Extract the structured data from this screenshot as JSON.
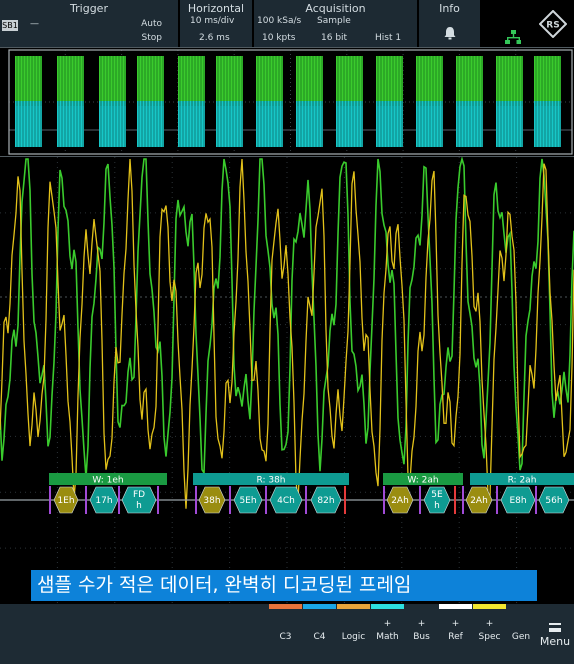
{
  "header": {
    "trigger": {
      "title": "Trigger",
      "source_badge": "SB1",
      "level": "—",
      "mode": "Auto",
      "state": "Stop"
    },
    "horizontal": {
      "title": "Horizontal",
      "time_scale": "10 ms/div",
      "position": "2.6 ms"
    },
    "acquisition": {
      "title": "Acquisition",
      "sample_rate": "100 kSa/s",
      "mode": "Sample",
      "record_length": "10 kpts",
      "resolution": "16 bit",
      "histogram": "Hist 1"
    },
    "info": {
      "title": "Info",
      "icon": "bell-icon"
    },
    "network_icon": "network-icon",
    "brand_icon": "rohde-schwarz-logo",
    "colors": {
      "header_bg": "#1d2a33",
      "network": "#34c759"
    }
  },
  "waveforms": {
    "colors": {
      "ch_green": "#3acb2d",
      "ch_yellow": "#e3c21a",
      "ch_cyan": "#17c7c7",
      "decode_green": "#1a9a42",
      "decode_teal": "#0e9b92",
      "decode_yellow": "#9a8d10",
      "error": "#e53b3b",
      "marker_purple": "#a14bd6"
    }
  },
  "decode": {
    "frames": [
      {
        "label": "W: 1eh",
        "type": "write"
      },
      {
        "label": "R: 38h",
        "type": "read"
      },
      {
        "label": "W: 2ah",
        "type": "write"
      },
      {
        "label": "R: 2ah",
        "type": "read"
      }
    ],
    "bytes": [
      {
        "label": "1Eh",
        "kind": "address"
      },
      {
        "label": "17h",
        "kind": "data"
      },
      {
        "label": "FD h",
        "kind": "data"
      },
      {
        "label": "38h",
        "kind": "address"
      },
      {
        "label": "5Eh",
        "kind": "data"
      },
      {
        "label": "4Ch",
        "kind": "data"
      },
      {
        "label": "82h",
        "kind": "data"
      },
      {
        "label": "2Ah",
        "kind": "address"
      },
      {
        "label": "5E h",
        "kind": "data"
      },
      {
        "label": "2Ah",
        "kind": "address"
      },
      {
        "label": "E8h",
        "kind": "data"
      },
      {
        "label": "56h",
        "kind": "data"
      }
    ]
  },
  "caption": "샘플 수가 적은 데이터, 완벽히 디코딩된 프레임",
  "bottombar": {
    "buttons": [
      {
        "label": "C3",
        "plus": "",
        "color": "#e8743b"
      },
      {
        "label": "C4",
        "plus": "",
        "color": "#1aa6e6"
      },
      {
        "label": "Logic",
        "plus": "",
        "color": "#e8a33b"
      },
      {
        "label": "Math",
        "plus": "+",
        "color": "#2de0e0"
      },
      {
        "label": "Bus",
        "plus": "+",
        "color": "#1e2b34"
      },
      {
        "label": "Ref",
        "plus": "+",
        "color": "#ffffff"
      },
      {
        "label": "Spec",
        "plus": "+",
        "color": "#f2e630"
      },
      {
        "label": "Gen",
        "plus": "",
        "color": "#1e2b34"
      }
    ],
    "menu_label": "Menu"
  }
}
